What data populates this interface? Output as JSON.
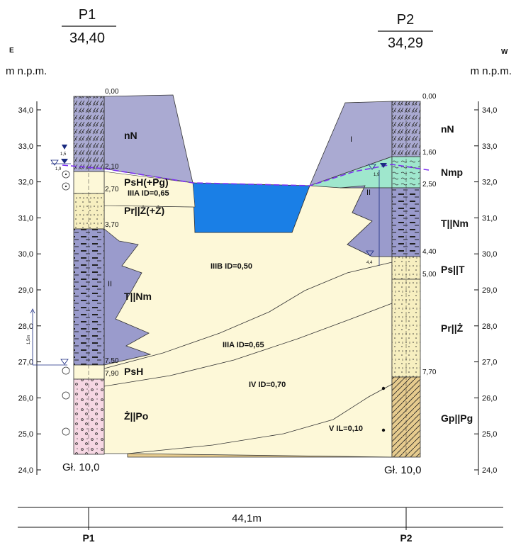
{
  "left_profile": {
    "name": "P1",
    "elevation": "34,40",
    "bottom_label": "Gł. 10,0",
    "depths": [
      "0,00",
      "2,10",
      "2,70",
      "3,70",
      "7,50",
      "7,90"
    ]
  },
  "right_profile": {
    "name": "P2",
    "elevation": "34,29",
    "bottom_label": "Gł. 10,0",
    "depths": [
      "0,00",
      "1,60",
      "2,50",
      "4,40",
      "5,00",
      "7,70"
    ]
  },
  "directions": {
    "left": "E",
    "right": "W"
  },
  "axis_unit": "m n.p.m.",
  "elevation_ticks": [
    "34,0",
    "33,0",
    "32,0",
    "31,0",
    "30,0",
    "29,0",
    "28,0",
    "27,0",
    "26,0",
    "25,0",
    "24,0"
  ],
  "soil_labels": {
    "nN_left": "nN",
    "psh_pg": "PsH(+Pg)",
    "iiia_top": "IIIA ID=0,65",
    "pr_z_z": "Pr||Ż(+Ż)",
    "t_nm_left": "T||Nm",
    "psh": "PsH",
    "z_po": "Ż||Po",
    "nN_right": "nN",
    "nmp": "Nmp",
    "t_nm_right": "T||Nm",
    "ps_t": "Ps||T",
    "pr_z": "Pr||Ż",
    "gp_pg": "Gp||Pg",
    "iiib": "IIIB ID=0,50",
    "iiia_mid": "IIIA ID=0,65",
    "iv": "IV ID=0,70",
    "v": "V IL=0,10",
    "roman_i": "I",
    "roman_ii_left": "II",
    "roman_ii_right": "II"
  },
  "water_marks": {
    "left_a": "1,5",
    "left_b": "1,9",
    "right_a": "1,9",
    "right_b": "4,4",
    "left_rise": "1,5m"
  },
  "distance": "44,1m",
  "bottom_names": {
    "left": "P1",
    "right": "P2"
  },
  "colors": {
    "anthropogenic": "#aaaad2",
    "sand_light": "#fdf8d8",
    "sand_dotted": "#f7efc0",
    "clay": "#9a9bcc",
    "gravel": "#f6d7e3",
    "mud": "#9fe7cd",
    "loam": "#e6cb8e",
    "water": "#1a7fe6",
    "groundwater": "#7b2ff0"
  }
}
